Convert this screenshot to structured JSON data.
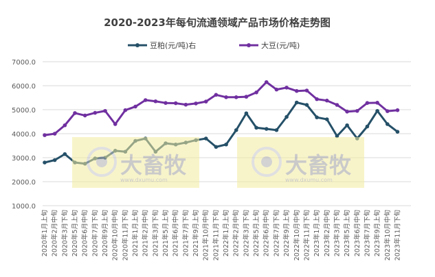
{
  "chart_data": {
    "type": "line",
    "title": "2020-2023年每旬流通领域产品市场价格走势图",
    "xlabel": "",
    "ylabel": "",
    "ylim": [
      1000,
      7000
    ],
    "yticks": [
      "7000.0",
      "6000.0",
      "5000.0",
      "4000.0",
      "3000.0",
      "2000.0",
      "1000.0"
    ],
    "grid": true,
    "legend": "top",
    "categories": [
      "2020年1月上旬",
      "2020年2月中旬",
      "2020年3月下旬",
      "2020年5月上旬",
      "2020年6月中旬",
      "2020年7月下旬",
      "2020年9月上旬",
      "2020年10月中旬",
      "2020年11月下旬",
      "2021年1月上旬",
      "2021年2月中旬",
      "2021年3月下旬",
      "2021年5月上旬",
      "2021年6月中旬",
      "2021年7月下旬",
      "2021年9月上旬",
      "2021年10月中旬",
      "2021年11月下旬",
      "2022年1月上旬",
      "2022年2月中旬",
      "2022年3月下旬",
      "2022年5月上旬",
      "2022年6月中旬",
      "2022年7月下旬",
      "2022年9月上旬",
      "2022年10月中旬",
      "2022年11月下旬",
      "2023年1月上旬",
      "2023年2月中旬",
      "2023年3月下旬",
      "2023年5月上旬",
      "2023年6月中旬",
      "2023年7月下旬",
      "2023年9月上旬",
      "2023年10月中旬",
      "2023年11月下旬"
    ],
    "series": [
      {
        "name": "豆粕(元/吨)右",
        "color": "#255068",
        "values": [
          2800,
          2900,
          3150,
          2800,
          2750,
          2970,
          3000,
          3290,
          3250,
          3700,
          3800,
          3250,
          3600,
          3550,
          3630,
          3730,
          3800,
          3450,
          3550,
          4150,
          4850,
          4250,
          4200,
          4150,
          4700,
          5300,
          5200,
          4680,
          4600,
          3900,
          4350,
          3800,
          4300,
          4950,
          4400,
          4080
        ]
      },
      {
        "name": "大豆(元/吨)",
        "color": "#7030a0",
        "values": [
          3940,
          4000,
          4350,
          4860,
          4760,
          4870,
          4950,
          4400,
          4980,
          5130,
          5400,
          5350,
          5280,
          5270,
          5210,
          5260,
          5340,
          5620,
          5520,
          5520,
          5540,
          5720,
          6150,
          5840,
          5920,
          5780,
          5800,
          5440,
          5380,
          5200,
          4920,
          4950,
          5280,
          5290,
          4940,
          4980
        ]
      }
    ]
  },
  "watermark": {
    "logo_text": "大畜牧",
    "url_text": "www.dxumu.com"
  }
}
